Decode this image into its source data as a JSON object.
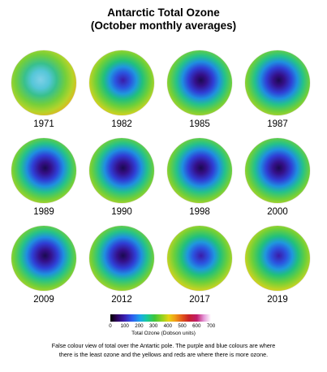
{
  "title_line1": "Antarctic Total Ozone",
  "title_line2": "(October monthly averages)",
  "maps": [
    {
      "year": "1971",
      "variant": "low"
    },
    {
      "year": "1982",
      "variant": "mid"
    },
    {
      "year": "1985",
      "variant": "hole"
    },
    {
      "year": "1987",
      "variant": "hole"
    },
    {
      "year": "1989",
      "variant": "hole"
    },
    {
      "year": "1990",
      "variant": "hole"
    },
    {
      "year": "1998",
      "variant": "hole"
    },
    {
      "year": "2000",
      "variant": "hole"
    },
    {
      "year": "2009",
      "variant": "hole"
    },
    {
      "year": "2012",
      "variant": "hole"
    },
    {
      "year": "2017",
      "variant": "mid"
    },
    {
      "year": "2019",
      "variant": "mid"
    }
  ],
  "colorbar": {
    "ticks": [
      "0",
      "100",
      "200",
      "300",
      "400",
      "500",
      "600",
      "700"
    ],
    "label": "Total Ozone (Dobson units)"
  },
  "caption": "False colour view of total over the Antartic pole. The purple and blue colours are where there is the least ozone and the yellows and reds are where there is more ozone."
}
